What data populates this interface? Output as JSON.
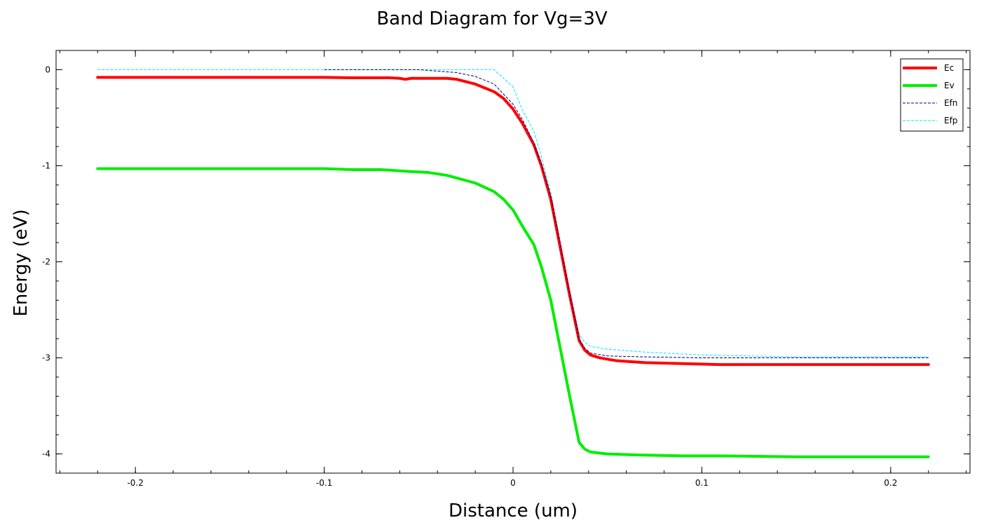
{
  "chart_data": {
    "type": "line",
    "title": "Band Diagram for Vg=3V",
    "xlabel": "Distance (um)",
    "ylabel": "Energy (eV)",
    "xlim": [
      -0.242,
      0.242
    ],
    "ylim": [
      -4.2,
      0.2
    ],
    "xticks": [
      -0.2,
      -0.1,
      0,
      0.1,
      0.2
    ],
    "xtick_labels": [
      "-0.2",
      "-0.1",
      "0",
      "0.1",
      "0.2"
    ],
    "yticks": [
      0,
      -1,
      -2,
      -3,
      -4
    ],
    "ytick_labels": [
      "0",
      "-1",
      "-2",
      "-3",
      "-4"
    ],
    "x_minor_step": 0.02,
    "y_minor_step": 0.2,
    "grid": false,
    "legend_position": "top-right",
    "series": [
      {
        "name": "Ec",
        "color": "#ff0000",
        "style": "solid",
        "width": 4,
        "points": [
          [
            -0.22,
            -0.08
          ],
          [
            -0.1,
            -0.08
          ],
          [
            -0.085,
            -0.085
          ],
          [
            -0.065,
            -0.085
          ],
          [
            -0.06,
            -0.09
          ],
          [
            -0.057,
            -0.1
          ],
          [
            -0.054,
            -0.09
          ],
          [
            -0.035,
            -0.09
          ],
          [
            -0.03,
            -0.1
          ],
          [
            -0.02,
            -0.15
          ],
          [
            -0.01,
            -0.23
          ],
          [
            -0.005,
            -0.3
          ],
          [
            0,
            -0.41
          ],
          [
            0.005,
            -0.56
          ],
          [
            0.011,
            -0.78
          ],
          [
            0.015,
            -1.0
          ],
          [
            0.02,
            -1.35
          ],
          [
            0.025,
            -1.85
          ],
          [
            0.03,
            -2.35
          ],
          [
            0.035,
            -2.82
          ],
          [
            0.038,
            -2.92
          ],
          [
            0.041,
            -2.97
          ],
          [
            0.046,
            -3.0
          ],
          [
            0.055,
            -3.03
          ],
          [
            0.07,
            -3.05
          ],
          [
            0.09,
            -3.06
          ],
          [
            0.11,
            -3.07
          ],
          [
            0.15,
            -3.07
          ],
          [
            0.22,
            -3.07
          ]
        ]
      },
      {
        "name": "Ev",
        "color": "#00ee00",
        "style": "solid",
        "width": 4,
        "points": [
          [
            -0.22,
            -1.03
          ],
          [
            -0.13,
            -1.03
          ],
          [
            -0.1,
            -1.03
          ],
          [
            -0.085,
            -1.04
          ],
          [
            -0.07,
            -1.04
          ],
          [
            -0.055,
            -1.06
          ],
          [
            -0.045,
            -1.07
          ],
          [
            -0.035,
            -1.1
          ],
          [
            -0.02,
            -1.18
          ],
          [
            -0.01,
            -1.27
          ],
          [
            -0.005,
            -1.35
          ],
          [
            0,
            -1.46
          ],
          [
            0.005,
            -1.63
          ],
          [
            0.011,
            -1.82
          ],
          [
            0.015,
            -2.05
          ],
          [
            0.02,
            -2.4
          ],
          [
            0.025,
            -2.9
          ],
          [
            0.03,
            -3.4
          ],
          [
            0.035,
            -3.88
          ],
          [
            0.038,
            -3.95
          ],
          [
            0.041,
            -3.98
          ],
          [
            0.05,
            -4.0
          ],
          [
            0.065,
            -4.01
          ],
          [
            0.09,
            -4.02
          ],
          [
            0.11,
            -4.02
          ],
          [
            0.15,
            -4.03
          ],
          [
            0.22,
            -4.03
          ]
        ]
      },
      {
        "name": "Efn",
        "color": "#000080",
        "style": "dashed",
        "width": 1,
        "points": [
          [
            -0.1,
            0
          ],
          [
            -0.05,
            0
          ],
          [
            -0.03,
            -0.03
          ],
          [
            -0.02,
            -0.07
          ],
          [
            -0.01,
            -0.15
          ],
          [
            0,
            -0.36
          ],
          [
            0.005,
            -0.52
          ],
          [
            0.011,
            -0.76
          ],
          [
            0.015,
            -0.98
          ],
          [
            0.02,
            -1.32
          ],
          [
            0.025,
            -1.82
          ],
          [
            0.03,
            -2.33
          ],
          [
            0.035,
            -2.8
          ],
          [
            0.038,
            -2.9
          ],
          [
            0.041,
            -2.95
          ],
          [
            0.05,
            -2.98
          ],
          [
            0.07,
            -2.99
          ],
          [
            0.1,
            -3.0
          ],
          [
            0.22,
            -3.0
          ]
        ]
      },
      {
        "name": "Efp",
        "color": "#00e5ff",
        "style": "dashed",
        "width": 1,
        "points": [
          [
            -0.22,
            0
          ],
          [
            -0.05,
            0
          ],
          [
            -0.01,
            0
          ],
          [
            0,
            -0.18
          ],
          [
            0.005,
            -0.42
          ],
          [
            0.011,
            -0.64
          ],
          [
            0.015,
            -0.9
          ],
          [
            0.02,
            -1.28
          ],
          [
            0.025,
            -1.8
          ],
          [
            0.03,
            -2.3
          ],
          [
            0.035,
            -2.75
          ],
          [
            0.038,
            -2.84
          ],
          [
            0.041,
            -2.88
          ],
          [
            0.05,
            -2.91
          ],
          [
            0.07,
            -2.94
          ],
          [
            0.1,
            -2.97
          ],
          [
            0.15,
            -2.99
          ],
          [
            0.22,
            -2.99
          ]
        ]
      }
    ]
  }
}
